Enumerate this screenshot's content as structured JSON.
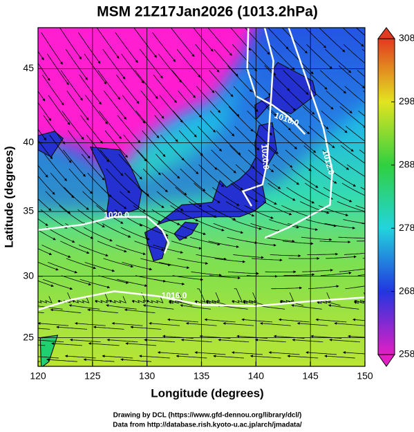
{
  "header": {
    "title": "MSM 21Z17Jan2026 (1013.2hPa)"
  },
  "map": {
    "xlabel": "Longitude (degrees)",
    "ylabel": "Latitude  (degrees)",
    "xlim": [
      120,
      150
    ],
    "ylim": [
      22.6,
      47.6
    ],
    "xticks": [
      120,
      125,
      130,
      135,
      140,
      145,
      150
    ],
    "yticks": [
      25,
      30,
      35,
      40,
      45
    ],
    "contour_labels": [
      "1020.0",
      "1016.0",
      "1016.0",
      "1020.0",
      "1012.0"
    ]
  },
  "colorbar": {
    "lim": [
      258,
      308
    ],
    "ticks": [
      258,
      268,
      278,
      288,
      298,
      308
    ],
    "colors": [
      "#e21fc4",
      "#2236e0",
      "#22d4dc",
      "#30d040",
      "#e2e420",
      "#e23a20"
    ]
  },
  "footer": {
    "lines": [
      "Drawing by DCL (https://www.gfd-dennou.org/library/dcl/)",
      "Data from http://database.rish.kyoto-u.ac.jp/arch/jmadata/"
    ]
  }
}
